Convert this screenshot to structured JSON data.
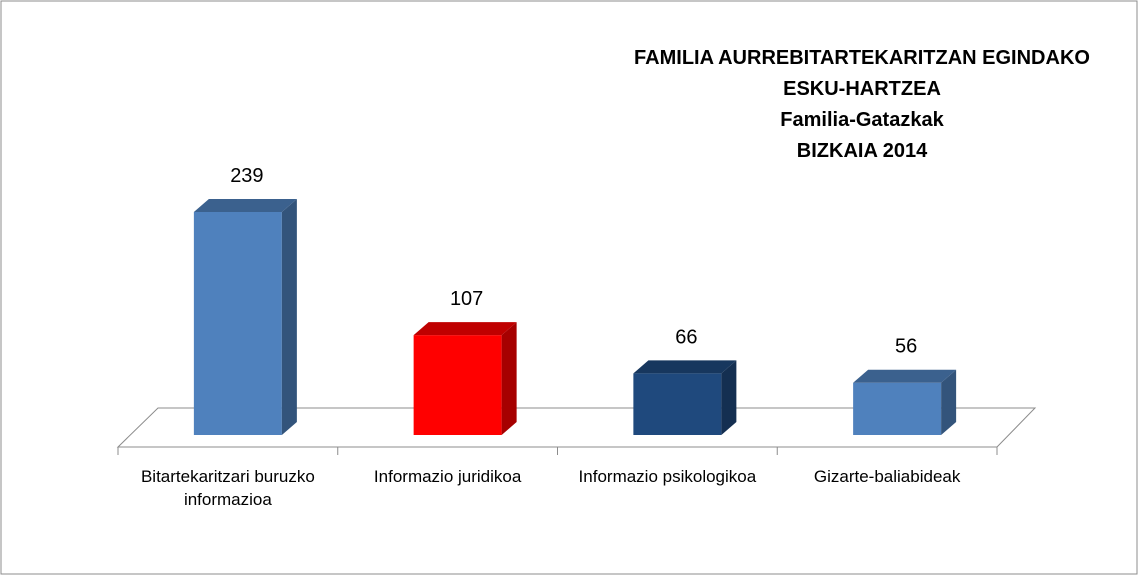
{
  "chart_data": {
    "type": "bar3d",
    "title": [
      "FAMILIA AURREBITARTEKARITZAN EGINDAKO",
      "ESKU-HARTZEA",
      "Familia-Gatazkak",
      "BIZKAIA 2014"
    ],
    "categories": [
      "Bitartekaritzari buruzko informazioa",
      "Informazio juridikoa",
      "Informazio psikologikoa",
      "Gizarte-baliabideak"
    ],
    "values": [
      239,
      107,
      66,
      56
    ],
    "colors": [
      "#4f81bd",
      "#ff0000",
      "#1f497d",
      "#4f81bd"
    ]
  }
}
